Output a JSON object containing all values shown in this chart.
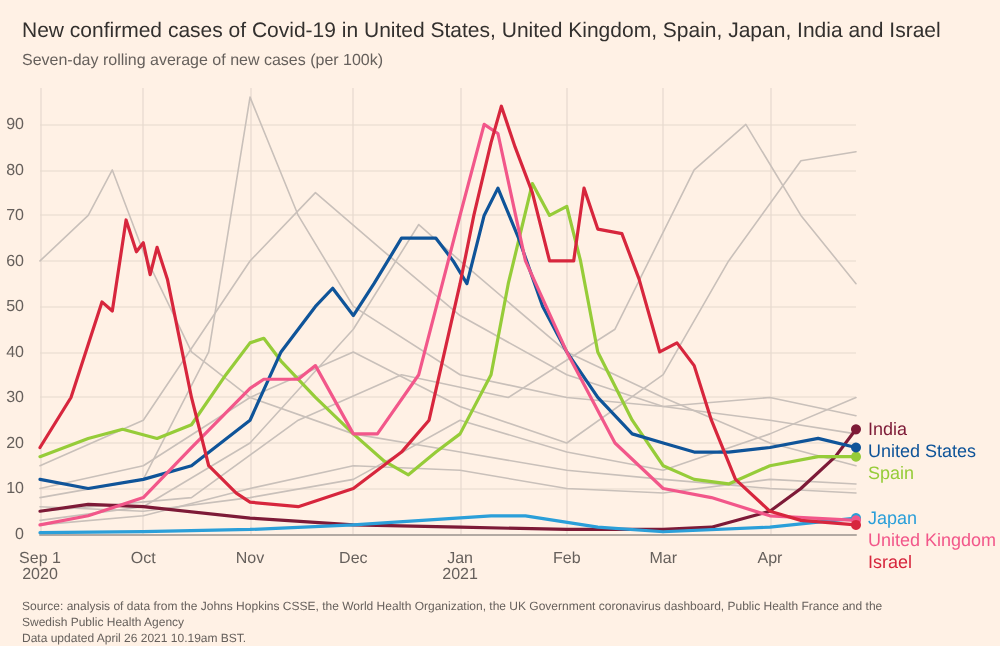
{
  "chart_data": {
    "type": "line",
    "title": "New confirmed cases of Covid-19 in United States, United Kingdom, Spain, Japan, India and Israel",
    "subtitle": "Seven-day rolling average of new cases (per 100k)",
    "annotations": [
      "Source: analysis of data from the Johns Hopkins CSSE, the World Health Organization, the UK Government coronavirus dashboard, Public Health France and the Swedish Public Health Agency",
      "Data updated April 26 2021 10.19am BST."
    ],
    "xlim": [
      "2020-09-01",
      "2021-04-26"
    ],
    "xticks": [
      {
        "value": "2020-09-01",
        "label": "Sep 1\n2020"
      },
      {
        "value": "2020-10-01",
        "label": "Oct"
      },
      {
        "value": "2020-11-01",
        "label": "Nov"
      },
      {
        "value": "2020-12-01",
        "label": "Dec"
      },
      {
        "value": "2021-01-01",
        "label": "Jan\n2021"
      },
      {
        "value": "2021-02-01",
        "label": "Feb"
      },
      {
        "value": "2021-03-01",
        "label": "Mar"
      },
      {
        "value": "2021-04-01",
        "label": "Apr"
      }
    ],
    "ylim": [
      0,
      98
    ],
    "yticks": [
      0,
      10,
      20,
      30,
      40,
      50,
      60,
      70,
      80,
      90
    ],
    "grid": true,
    "line_style": "solid",
    "series": [
      {
        "color": "#c9c0ba",
        "x": [
          "2020-09-01",
          "2020-09-15",
          "2020-09-22",
          "2020-10-01",
          "2020-10-15",
          "2020-11-01",
          "2020-12-01",
          "2021-01-01",
          "2021-02-01",
          "2021-03-01",
          "2021-04-01",
          "2021-04-26"
        ],
        "values": [
          60,
          70,
          80,
          62,
          40,
          30,
          22,
          18,
          14,
          12,
          10,
          9
        ]
      },
      {
        "color": "#c9c0ba",
        "x": [
          "2020-09-01",
          "2020-10-01",
          "2020-10-20",
          "2020-11-01",
          "2020-11-15",
          "2020-12-01",
          "2021-01-01",
          "2021-02-01",
          "2021-03-01",
          "2021-04-01",
          "2021-04-26"
        ],
        "values": [
          8,
          12,
          40,
          96,
          70,
          50,
          35,
          30,
          28,
          25,
          22
        ]
      },
      {
        "color": "#c9c0ba",
        "x": [
          "2020-09-01",
          "2020-10-01",
          "2020-11-01",
          "2020-12-01",
          "2020-12-20",
          "2021-01-01",
          "2021-02-01",
          "2021-03-01",
          "2021-04-01",
          "2021-04-26"
        ],
        "values": [
          3,
          6,
          20,
          45,
          68,
          60,
          40,
          30,
          20,
          15
        ]
      },
      {
        "color": "#c9c0ba",
        "x": [
          "2020-09-01",
          "2020-10-15",
          "2020-11-15",
          "2020-12-15",
          "2021-01-15",
          "2021-02-15",
          "2021-03-10",
          "2021-03-25",
          "2021-04-10",
          "2021-04-26"
        ],
        "values": [
          5,
          8,
          25,
          35,
          30,
          45,
          80,
          90,
          70,
          55
        ]
      },
      {
        "color": "#c9c0ba",
        "x": [
          "2020-09-01",
          "2020-10-01",
          "2020-11-01",
          "2020-12-01",
          "2021-01-01",
          "2021-02-01",
          "2021-03-01",
          "2021-03-20",
          "2021-04-10",
          "2021-04-26"
        ],
        "values": [
          10,
          15,
          30,
          40,
          28,
          20,
          35,
          60,
          82,
          84
        ]
      },
      {
        "color": "#c9c0ba",
        "x": [
          "2020-09-01",
          "2020-10-01",
          "2020-11-01",
          "2020-12-01",
          "2021-01-01",
          "2021-02-01",
          "2021-03-01",
          "2021-04-01",
          "2021-04-26"
        ],
        "values": [
          2,
          4,
          10,
          15,
          14,
          10,
          9,
          12,
          11
        ]
      },
      {
        "color": "#c9c0ba",
        "x": [
          "2020-09-01",
          "2020-10-01",
          "2020-11-01",
          "2020-11-20",
          "2020-12-10",
          "2021-01-01",
          "2021-02-01",
          "2021-03-01",
          "2021-04-01",
          "2021-04-26"
        ],
        "values": [
          15,
          25,
          60,
          75,
          62,
          48,
          35,
          28,
          30,
          26
        ]
      },
      {
        "color": "#c9c0ba",
        "x": [
          "2020-09-01",
          "2020-10-01",
          "2020-11-01",
          "2020-12-01",
          "2021-01-01",
          "2021-02-01",
          "2021-03-01",
          "2021-04-01",
          "2021-04-26"
        ],
        "values": [
          6,
          5,
          8,
          12,
          25,
          18,
          14,
          22,
          30
        ]
      },
      {
        "name": "India",
        "color": "#7d1a37",
        "x": [
          "2020-09-01",
          "2020-09-15",
          "2020-10-01",
          "2020-11-01",
          "2020-12-01",
          "2021-01-01",
          "2021-02-01",
          "2021-03-01",
          "2021-03-15",
          "2021-04-01",
          "2021-04-10",
          "2021-04-20",
          "2021-04-26"
        ],
        "values": [
          5,
          6.5,
          6,
          3.5,
          2,
          1.5,
          1,
          1,
          1.5,
          5,
          10,
          17,
          23
        ]
      },
      {
        "name": "Spain",
        "color": "#96cc39",
        "x": [
          "2020-09-01",
          "2020-09-15",
          "2020-09-25",
          "2020-10-05",
          "2020-10-15",
          "2020-10-25",
          "2020-11-01",
          "2020-11-05",
          "2020-11-10",
          "2020-11-20",
          "2020-12-01",
          "2020-12-10",
          "2020-12-17",
          "2020-12-25",
          "2021-01-01",
          "2021-01-10",
          "2021-01-15",
          "2021-01-22",
          "2021-01-27",
          "2021-02-01",
          "2021-02-05",
          "2021-02-10",
          "2021-02-20",
          "2021-03-01",
          "2021-03-10",
          "2021-03-20",
          "2021-04-01",
          "2021-04-15",
          "2021-04-26"
        ],
        "values": [
          17,
          21,
          23,
          21,
          24,
          35,
          42,
          43,
          38,
          30,
          22,
          16,
          13,
          18,
          22,
          35,
          55,
          77,
          70,
          72,
          60,
          40,
          25,
          15,
          12,
          11,
          15,
          17,
          17
        ]
      },
      {
        "name": "United States",
        "color": "#0f5499",
        "x": [
          "2020-09-01",
          "2020-09-15",
          "2020-10-01",
          "2020-10-15",
          "2020-11-01",
          "2020-11-10",
          "2020-11-20",
          "2020-11-25",
          "2020-12-01",
          "2020-12-07",
          "2020-12-15",
          "2020-12-25",
          "2020-12-30",
          "2021-01-03",
          "2021-01-08",
          "2021-01-12",
          "2021-01-18",
          "2021-01-25",
          "2021-02-01",
          "2021-02-10",
          "2021-02-20",
          "2021-03-01",
          "2021-03-10",
          "2021-03-20",
          "2021-04-01",
          "2021-04-15",
          "2021-04-26"
        ],
        "values": [
          12,
          10,
          12,
          15,
          25,
          40,
          50,
          54,
          48,
          55,
          65,
          65,
          60,
          55,
          70,
          76,
          65,
          50,
          40,
          30,
          22,
          20,
          18,
          18,
          19,
          21,
          19
        ]
      },
      {
        "name": "Japan",
        "color": "#2b9fd9",
        "x": [
          "2020-09-01",
          "2020-10-01",
          "2020-11-01",
          "2020-12-01",
          "2021-01-10",
          "2021-01-20",
          "2021-02-10",
          "2021-03-01",
          "2021-04-01",
          "2021-04-26"
        ],
        "values": [
          0.3,
          0.5,
          1,
          2,
          4,
          4,
          1.5,
          0.5,
          1.5,
          3.5
        ]
      },
      {
        "name": "United Kingdom",
        "color": "#f2578a",
        "x": [
          "2020-09-01",
          "2020-09-15",
          "2020-10-01",
          "2020-10-15",
          "2020-11-01",
          "2020-11-05",
          "2020-11-15",
          "2020-11-20",
          "2020-12-01",
          "2020-12-08",
          "2020-12-20",
          "2021-01-01",
          "2021-01-08",
          "2021-01-12",
          "2021-01-20",
          "2021-02-01",
          "2021-02-15",
          "2021-03-01",
          "2021-03-15",
          "2021-04-01",
          "2021-04-26"
        ],
        "values": [
          2,
          4,
          8,
          19,
          32,
          34,
          34,
          37,
          22,
          22,
          35,
          70,
          90,
          88,
          60,
          40,
          20,
          10,
          8,
          4,
          3
        ]
      },
      {
        "name": "Israel",
        "color": "#d7263d",
        "x": [
          "2020-09-01",
          "2020-09-10",
          "2020-09-19",
          "2020-09-22",
          "2020-09-26",
          "2020-09-29",
          "2020-10-01",
          "2020-10-03",
          "2020-10-05",
          "2020-10-08",
          "2020-10-15",
          "2020-10-20",
          "2020-10-28",
          "2020-11-01",
          "2020-11-15",
          "2020-12-01",
          "2020-12-15",
          "2020-12-23",
          "2021-01-01",
          "2021-01-05",
          "2021-01-10",
          "2021-01-13",
          "2021-01-17",
          "2021-01-22",
          "2021-01-27",
          "2021-02-03",
          "2021-02-06",
          "2021-02-10",
          "2021-02-17",
          "2021-02-22",
          "2021-02-28",
          "2021-03-05",
          "2021-03-10",
          "2021-03-15",
          "2021-03-22",
          "2021-04-01",
          "2021-04-10",
          "2021-04-26"
        ],
        "values": [
          19,
          30,
          51,
          49,
          69,
          62,
          64,
          57,
          63,
          56,
          30,
          15,
          9,
          7,
          6,
          10,
          18,
          25,
          55,
          70,
          86,
          94,
          85,
          75,
          60,
          60,
          76,
          67,
          66,
          56,
          40,
          42,
          37,
          25,
          12,
          5,
          3,
          2
        ]
      }
    ]
  }
}
